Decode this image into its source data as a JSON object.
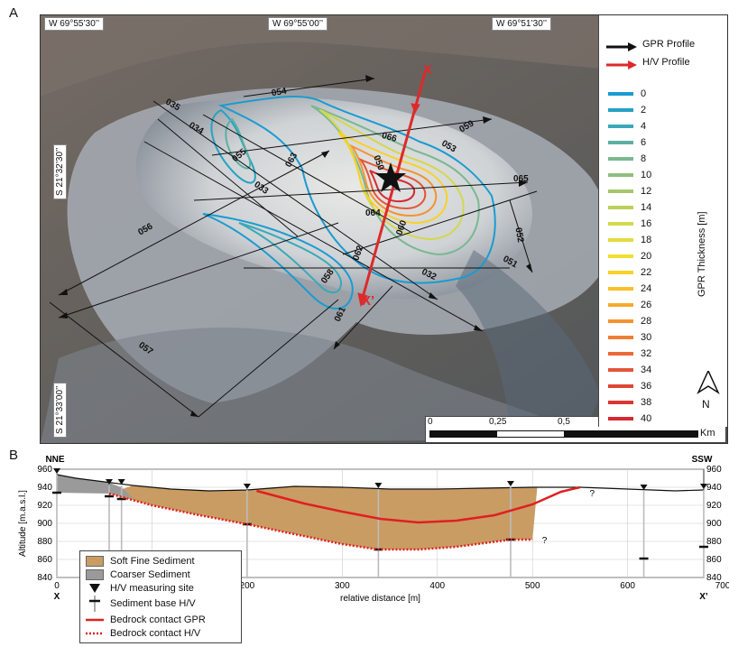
{
  "panel_a": {
    "label": "A",
    "top_coords": [
      "W 69°55’30’’",
      "W 69°55’00’’",
      "W 69°51’30’’"
    ],
    "side_coords": [
      "S 21°32’30’’",
      "S 21°33’00’’"
    ],
    "legend": {
      "gpr_profile": "GPR Profile",
      "hv_profile": "H/V Profile",
      "title": "GPR Thickness  [m]",
      "entries": [
        {
          "value": "0",
          "color": "#1b9bd1"
        },
        {
          "value": "2",
          "color": "#25a2c4"
        },
        {
          "value": "4",
          "color": "#3aa8b9"
        },
        {
          "value": "6",
          "color": "#5cb0a3"
        },
        {
          "value": "8",
          "color": "#7bb891"
        },
        {
          "value": "10",
          "color": "#8fbd7f"
        },
        {
          "value": "12",
          "color": "#a5c66a"
        },
        {
          "value": "14",
          "color": "#bccf58"
        },
        {
          "value": "16",
          "color": "#d3d84c"
        },
        {
          "value": "18",
          "color": "#e4dc3d"
        },
        {
          "value": "20",
          "color": "#f1de2e"
        },
        {
          "value": "22",
          "color": "#f8d12a"
        },
        {
          "value": "24",
          "color": "#f9bf2a"
        },
        {
          "value": "26",
          "color": "#f7a92d"
        },
        {
          "value": "28",
          "color": "#f39331"
        },
        {
          "value": "30",
          "color": "#ef7e35"
        },
        {
          "value": "32",
          "color": "#ea6936"
        },
        {
          "value": "34",
          "color": "#e45637"
        },
        {
          "value": "36",
          "color": "#de4636"
        },
        {
          "value": "38",
          "color": "#d93634"
        },
        {
          "value": "40",
          "color": "#d42a32"
        }
      ]
    },
    "scale": {
      "labels": [
        "0",
        "0,25",
        "0,5",
        "1"
      ],
      "unit": "Km"
    },
    "north": "N",
    "profile_labels": [
      "054",
      "035",
      "034",
      "055",
      "053",
      "066",
      "059",
      "063",
      "050",
      "065",
      "033",
      "064",
      "060",
      "052",
      "056",
      "062",
      "051",
      "032",
      "058",
      "061",
      "057"
    ],
    "markers": {
      "x_start": "X",
      "x_end": "X’"
    }
  },
  "panel_b": {
    "label": "B",
    "left_end": "NNE",
    "right_end": "SSW",
    "ylabel": "Altitude [m.a.s.l.]",
    "xlabel": "relative distance [m]",
    "y_ticks": [
      "960",
      "940",
      "920",
      "900",
      "880",
      "860",
      "840"
    ],
    "x_ticks": [
      "0",
      "100",
      "200",
      "300",
      "400",
      "500",
      "600",
      "700"
    ],
    "x_end_left": "X",
    "x_end_right": "X’",
    "question": "?",
    "legend": {
      "soft": "Soft Fine Sediment",
      "coarse": "Coarser Sediment",
      "site": "H/V measuring site",
      "base": "Sediment base H/V",
      "gpr": "Bedrock contact GPR",
      "hv": "Bedrock contact H/V"
    }
  },
  "chart_data": {
    "type": "line",
    "title": "",
    "xlabel": "relative distance [m]",
    "ylabel": "Altitude [m.a.s.l.]",
    "xlim": [
      0,
      680
    ],
    "ylim": [
      840,
      960
    ],
    "series": [
      {
        "name": "Bedrock contact GPR",
        "x": [
          210,
          260,
          300,
          340,
          380,
          420,
          460,
          500,
          530,
          550
        ],
        "y": [
          936,
          922,
          913,
          905,
          901,
          903,
          909,
          921,
          935,
          940
        ]
      },
      {
        "name": "Bedrock contact H/V",
        "x": [
          55,
          100,
          150,
          200,
          250,
          300,
          338,
          380,
          420,
          477,
          500
        ],
        "y": [
          933,
          920,
          909,
          899,
          888,
          877,
          871,
          871,
          874,
          882,
          882
        ]
      }
    ],
    "surface": {
      "x": [
        0,
        20,
        50,
        80,
        120,
        160,
        200,
        250,
        300,
        350,
        400,
        450,
        500,
        550,
        600,
        650,
        680
      ],
      "y": [
        954,
        950,
        946,
        942,
        938,
        936,
        937,
        941,
        940,
        938,
        938,
        939,
        940,
        940,
        938,
        936,
        937
      ]
    },
    "hv_sites": [
      0,
      55,
      68,
      200,
      338,
      477,
      617,
      680
    ],
    "sediment_base_hv": [
      {
        "x": 0,
        "y": 934
      },
      {
        "x": 55,
        "y": 930
      },
      {
        "x": 68,
        "y": 927
      },
      {
        "x": 200,
        "y": 899
      },
      {
        "x": 338,
        "y": 871
      },
      {
        "x": 477,
        "y": 882
      },
      {
        "x": 617,
        "y": 861
      },
      {
        "x": 680,
        "y": 874
      }
    ]
  }
}
